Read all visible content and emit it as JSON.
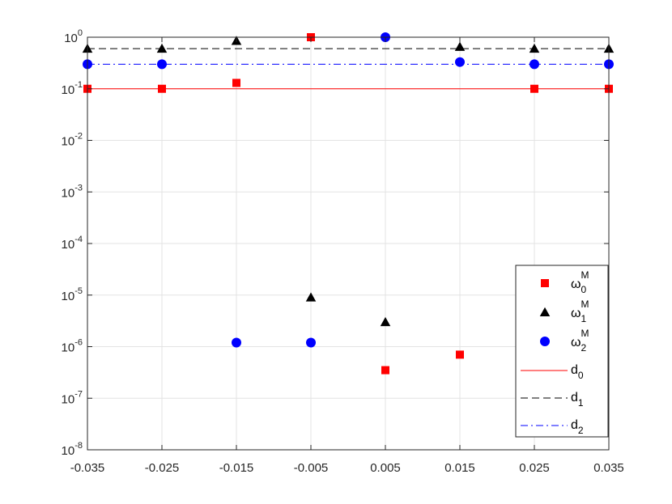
{
  "chart_data": {
    "type": "scatter",
    "title": "",
    "xlabel": "",
    "ylabel": "",
    "xlim": [
      -0.035,
      0.035
    ],
    "ylim": [
      1e-08,
      1
    ],
    "yscale": "log",
    "grid": true,
    "x_ticks": [
      "-0.035",
      "-0.025",
      "-0.015",
      "-0.005",
      "0.005",
      "0.015",
      "0.025",
      "0.035"
    ],
    "y_ticks": [
      {
        "base": "10",
        "exp": "-8"
      },
      {
        "base": "10",
        "exp": "-7"
      },
      {
        "base": "10",
        "exp": "-6"
      },
      {
        "base": "10",
        "exp": "-5"
      },
      {
        "base": "10",
        "exp": "-4"
      },
      {
        "base": "10",
        "exp": "-3"
      },
      {
        "base": "10",
        "exp": "-2"
      },
      {
        "base": "10",
        "exp": "-1"
      },
      {
        "base": "10",
        "exp": "0"
      }
    ],
    "x": [
      -0.035,
      -0.025,
      -0.015,
      -0.005,
      0.005,
      0.015,
      0.025,
      0.035
    ],
    "legend_position": "bottom-right",
    "series": [
      {
        "name": "ω0M",
        "sym": "ω",
        "sub": "0",
        "sup": "M",
        "marker": "square",
        "color": "#ff0000",
        "values": [
          0.1,
          0.1,
          0.13,
          1.0,
          3.5e-07,
          7e-07,
          0.1,
          0.1
        ]
      },
      {
        "name": "ω1M",
        "sym": "ω",
        "sub": "1",
        "sup": "M",
        "marker": "triangle",
        "color": "#000000",
        "values": [
          0.6,
          0.6,
          0.85,
          9e-06,
          3e-06,
          0.65,
          0.6,
          0.6
        ]
      },
      {
        "name": "ω2M",
        "sym": "ω",
        "sub": "2",
        "sup": "M",
        "marker": "circle",
        "color": "#0000ff",
        "values": [
          0.3,
          0.3,
          1.2e-06,
          1.2e-06,
          1.0,
          0.33,
          0.3,
          0.3
        ]
      }
    ],
    "reference_lines": [
      {
        "name": "d0",
        "sym": "d",
        "sub": "0",
        "value": 0.1,
        "style": "solid",
        "color": "#ff0000"
      },
      {
        "name": "d1",
        "sym": "d",
        "sub": "1",
        "value": 0.6,
        "style": "dashed",
        "color": "#000000"
      },
      {
        "name": "d2",
        "sym": "d",
        "sub": "2",
        "value": 0.3,
        "style": "dashdot",
        "color": "#0000ff"
      }
    ]
  }
}
